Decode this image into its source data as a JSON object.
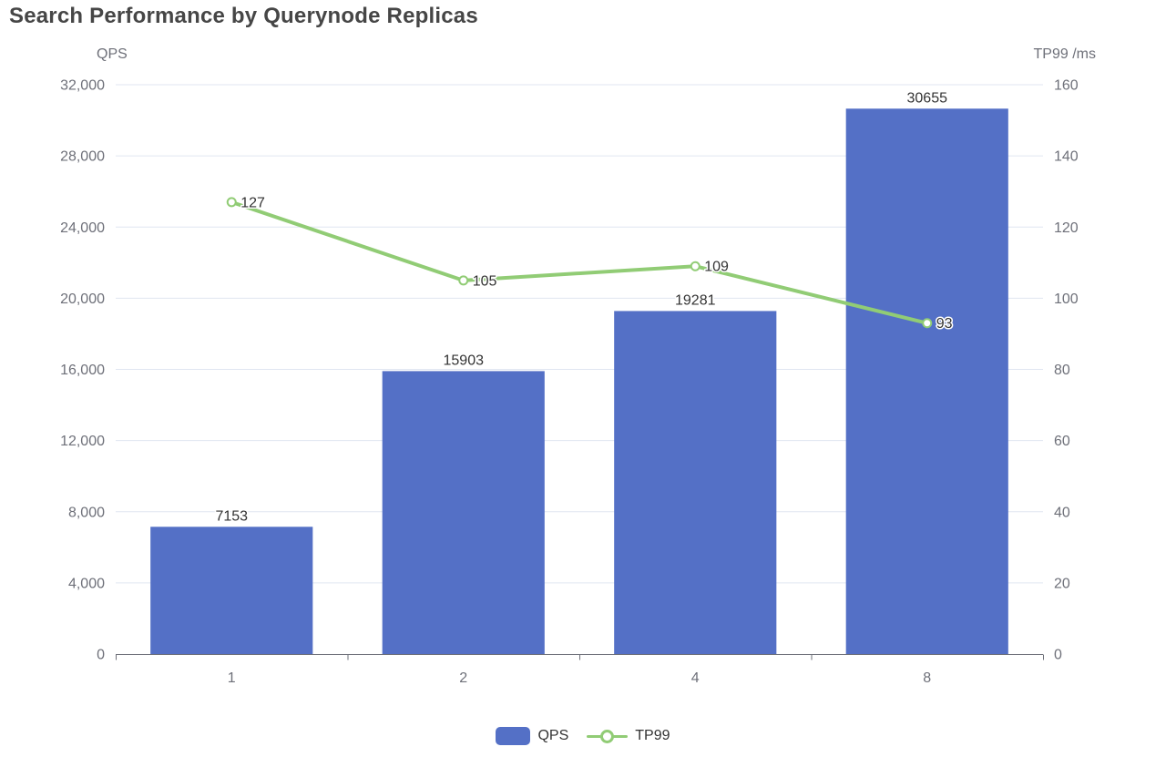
{
  "title": "Search Performance by Querynode Replicas",
  "colors": {
    "bar": "#5470C6",
    "line": "#91CC75",
    "marker_fill": "#ffffff",
    "grid": "#E0E6F1",
    "axis": "#6E7079",
    "tick_label": "#6E7079",
    "value_label": "#333333",
    "value_label_halo": "#ffffff",
    "title": "#464646"
  },
  "left_axis": {
    "name": "QPS",
    "min": 0,
    "max": 32000,
    "ticks": [
      "0",
      "4,000",
      "8,000",
      "12,000",
      "16,000",
      "20,000",
      "24,000",
      "28,000",
      "32,000"
    ]
  },
  "right_axis": {
    "name": "TP99 /ms",
    "min": 0,
    "max": 160,
    "ticks": [
      "0",
      "20",
      "40",
      "60",
      "80",
      "100",
      "120",
      "140",
      "160"
    ]
  },
  "legend": {
    "items": [
      {
        "label": "QPS",
        "type": "bar"
      },
      {
        "label": "TP99",
        "type": "line"
      }
    ]
  },
  "chart_data": {
    "type": "bar+line",
    "title": "Search Performance by Querynode Replicas",
    "categories": [
      "1",
      "2",
      "4",
      "8"
    ],
    "series": [
      {
        "name": "QPS",
        "type": "bar",
        "axis": "left",
        "values": [
          7153,
          15903,
          19281,
          30655
        ]
      },
      {
        "name": "TP99",
        "type": "line",
        "axis": "right",
        "values": [
          127,
          105,
          109,
          93
        ]
      }
    ],
    "xlabel": "",
    "ylabel_left": "QPS",
    "ylabel_right": "TP99 /ms",
    "ylim_left": [
      0,
      32000
    ],
    "ylim_right": [
      0,
      160
    ],
    "grid": true,
    "legend_position": "bottom",
    "value_labels": true
  }
}
